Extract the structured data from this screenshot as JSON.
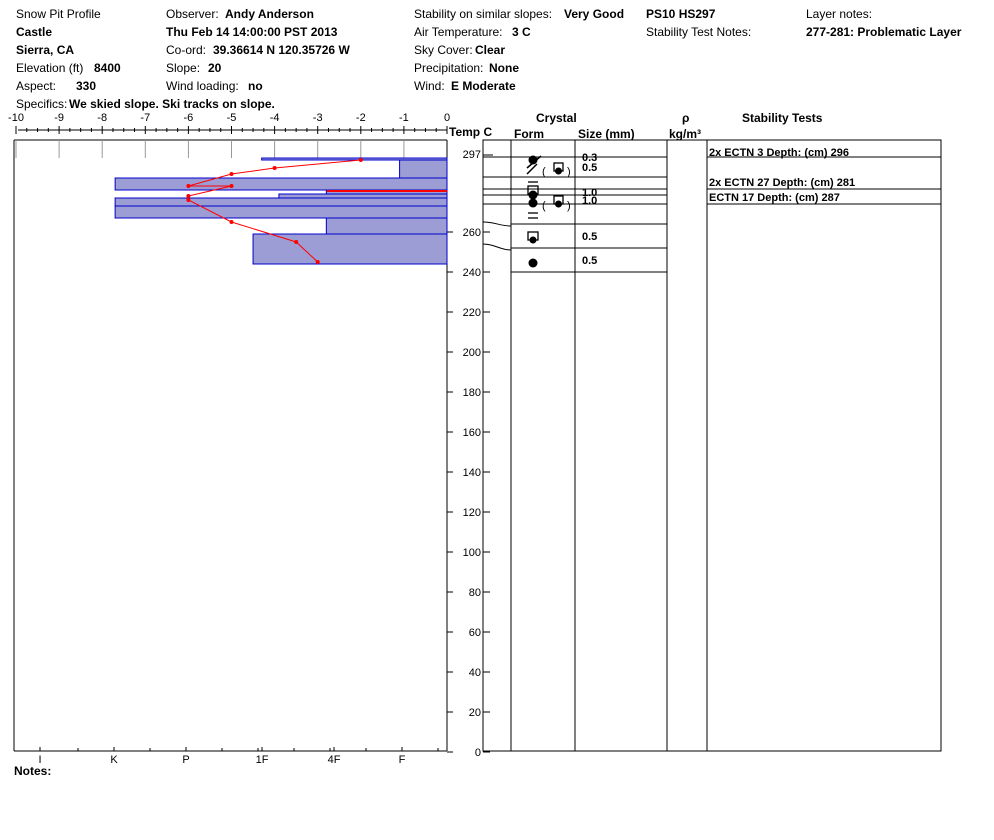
{
  "header": {
    "title": "Snow Pit Profile",
    "location": "Castle",
    "region": "Sierra, CA",
    "elevation_label": "Elevation (ft)",
    "elevation_value": "8400",
    "aspect_label": "Aspect:",
    "aspect_value": "330",
    "specifics_label": "Specifics:",
    "specifics_value": "We skied slope. Ski tracks on slope.",
    "observer_label": "Observer:",
    "observer_value": "Andy Anderson",
    "datetime": "Thu Feb 14 14:00:00 PST 2013",
    "coord_label": "Co-ord:",
    "coord_value": "39.36614 N 120.35726 W",
    "slope_label": "Slope:",
    "slope_value": "20",
    "wind_loading_label": "Wind loading:",
    "wind_loading_value": "no",
    "stability_label": "Stability on similar slopes:",
    "stability_value": "Very Good",
    "air_temp_label": "Air Temperature:",
    "air_temp_value": "3 C",
    "sky_label": "Sky Cover:",
    "sky_value": "Clear",
    "precip_label": "Precipitation:",
    "precip_value": "None",
    "wind_label": "Wind:",
    "wind_value": "E Moderate",
    "ps_hs": "PS10 HS297",
    "stability_notes_label": "Stability Test Notes:",
    "layer_notes_label": "Layer notes:",
    "layer_notes_value": "277-281: Problematic Layer"
  },
  "columns": {
    "temp": "Temp C",
    "crystal": "Crystal",
    "form": "Form",
    "size": "Size (mm)",
    "rho": "ρ",
    "density_unit": "kg/m³",
    "stability_tests": "Stability Tests"
  },
  "notes_label": "Notes:",
  "chart_data": {
    "type": "bar",
    "title": "Snow Pit Profile",
    "temp_axis": {
      "label": "Temp C",
      "range": [
        -10,
        0
      ],
      "ticks": [
        "-10",
        "-9",
        "-8",
        "-7",
        "-6",
        "-5",
        "-4",
        "-3",
        "-2",
        "-1",
        "0"
      ]
    },
    "height_axis": {
      "range": [
        0,
        300
      ],
      "ticks": [
        0,
        20,
        40,
        60,
        80,
        100,
        120,
        140,
        160,
        180,
        200,
        220,
        240,
        260
      ],
      "top_label": "297"
    },
    "hardness_axis": {
      "ticks": [
        "I",
        "K",
        "P",
        "1F",
        "4F",
        "F"
      ]
    },
    "layers": [
      {
        "top": 297,
        "bottom": 296,
        "hardness": 4.3,
        "size": "0.3"
      },
      {
        "top": 296,
        "bottom": 287,
        "hardness": 1.1,
        "size": "0.5"
      },
      {
        "top": 287,
        "bottom": 281,
        "hardness": 7.7,
        "size": ""
      },
      {
        "top": 281,
        "bottom": 279,
        "hardness": 2.8,
        "size": "1.0"
      },
      {
        "top": 279,
        "bottom": 277,
        "hardness": 3.9,
        "size": "1.0"
      },
      {
        "top": 277,
        "bottom": 273,
        "hardness": 7.7,
        "size": ""
      },
      {
        "top": 273,
        "bottom": 267,
        "hardness": 7.7,
        "size": ""
      },
      {
        "top": 267,
        "bottom": 259,
        "hardness": 2.8,
        "size": "0.5"
      },
      {
        "top": 259,
        "bottom": 244,
        "hardness": 4.5,
        "size": "0.5"
      }
    ],
    "temperature_profile": [
      {
        "depth": 296,
        "temp": -2.0
      },
      {
        "depth": 292,
        "temp": -4.0
      },
      {
        "depth": 289,
        "temp": -5.0
      },
      {
        "depth": 283,
        "temp": -6.0
      },
      {
        "depth": 283,
        "temp": -5.0
      },
      {
        "depth": 278,
        "temp": -6.0
      },
      {
        "depth": 276,
        "temp": -6.0
      },
      {
        "depth": 265,
        "temp": -5.0
      },
      {
        "depth": 255,
        "temp": -3.5
      },
      {
        "depth": 245,
        "temp": -3.0
      }
    ],
    "problem_layer_marker": 281,
    "crystal_sizes": [
      "0.3",
      "0.5",
      "1.0",
      "1.0",
      "0.5",
      "0.5"
    ],
    "stability_tests": [
      "2x ECTN 3   Depth: (cm) 296",
      "2x ECTN 27   Depth: (cm) 281",
      "ECTN 17   Depth: (cm) 287"
    ],
    "colors": {
      "layer_fill": "#9d9dd6",
      "layer_edge": "#0000cc",
      "temp_line": "#ff0000"
    }
  }
}
